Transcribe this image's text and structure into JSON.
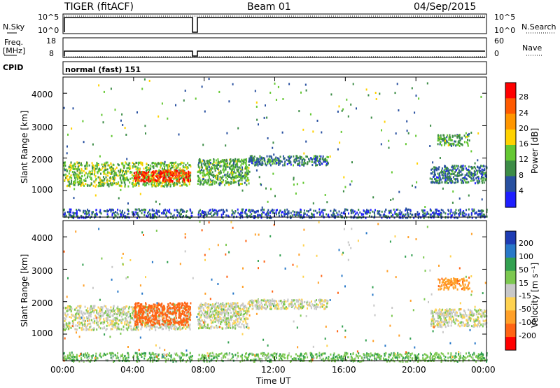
{
  "header": {
    "radar": "TIGER (fitACF)",
    "beam": "Beam 01",
    "date": "04/Sep/2015"
  },
  "noise_panel": {
    "left_label": "N.Sky",
    "right_label": "N.Search",
    "left_ticks": [
      "10^5",
      "10^0"
    ],
    "right_ticks": [
      "10^5",
      "10^0"
    ]
  },
  "freq_panel": {
    "left_label_top": "Freq.",
    "left_label_bottom": "[MHz]",
    "right_label": "Nave",
    "left_ticks": [
      "18",
      "8"
    ],
    "right_ticks": [
      "60",
      "0"
    ]
  },
  "cpid": {
    "label": "CPID",
    "value": "normal (fast) 151"
  },
  "axes": {
    "ylabel": "Slant Range [km]",
    "yticks": [
      "4000",
      "3000",
      "2000",
      "1000"
    ],
    "xticks": [
      "00:00",
      "04:00",
      "08:00",
      "12:00",
      "16:00",
      "20:00",
      "00:00"
    ],
    "xlabel": "Time UT"
  },
  "power_colorbar": {
    "label": "Power [dB]",
    "ticks": [
      "28",
      "24",
      "20",
      "16",
      "12",
      "8",
      "4"
    ],
    "colors": [
      "#ff0000",
      "#ff5a00",
      "#ff9600",
      "#ffd200",
      "#64c832",
      "#3c8c46",
      "#2850a0",
      "#1e1eff"
    ]
  },
  "velocity_colorbar": {
    "label": "Velocity [m s⁻¹]",
    "ticks": [
      "200",
      "100",
      "50",
      "15",
      "-15",
      "-50",
      "-100",
      "-200"
    ],
    "colors": [
      "#1e3cb4",
      "#2878c8",
      "#32a050",
      "#7cc850",
      "#c8c8c8",
      "#ffd250",
      "#ffa028",
      "#ff6414",
      "#ff0000"
    ]
  },
  "chart_data": {
    "type": "heatmap",
    "x_range_hours": [
      0,
      24
    ],
    "y_range_km": [
      180,
      4500
    ],
    "panels": [
      {
        "name": "Power",
        "scatter_bands": [
          {
            "t_start": 0.0,
            "t_end": 7.2,
            "r_start": 1150,
            "r_end": 1900,
            "value": 14
          },
          {
            "t_start": 4.0,
            "t_end": 7.2,
            "r_start": 1300,
            "r_end": 1650,
            "value": 28
          },
          {
            "t_start": 7.6,
            "t_end": 10.5,
            "r_start": 1200,
            "r_end": 2000,
            "value": 12
          },
          {
            "t_start": 10.5,
            "t_end": 15.0,
            "r_start": 1800,
            "r_end": 2100,
            "value": 8
          },
          {
            "t_start": 20.8,
            "t_end": 24.0,
            "r_start": 1250,
            "r_end": 1800,
            "value": 8
          },
          {
            "t_start": 21.2,
            "t_end": 23.0,
            "r_start": 2400,
            "r_end": 2750,
            "value": 12
          },
          {
            "t_start": 0.0,
            "t_end": 24.0,
            "r_start": 180,
            "r_end": 450,
            "value": 6
          }
        ]
      },
      {
        "name": "Velocity",
        "scatter_bands": [
          {
            "t_start": 0.0,
            "t_end": 7.2,
            "r_start": 1150,
            "r_end": 1900,
            "value": 0
          },
          {
            "t_start": 4.0,
            "t_end": 7.2,
            "r_start": 1300,
            "r_end": 2000,
            "value": -150
          },
          {
            "t_start": 7.6,
            "t_end": 10.5,
            "r_start": 1200,
            "r_end": 2000,
            "value": 0
          },
          {
            "t_start": 10.5,
            "t_end": 15.0,
            "r_start": 1800,
            "r_end": 2100,
            "value": 0
          },
          {
            "t_start": 20.8,
            "t_end": 24.0,
            "r_start": 1250,
            "r_end": 1800,
            "value": 0
          },
          {
            "t_start": 21.2,
            "t_end": 23.0,
            "r_start": 2400,
            "r_end": 2750,
            "value": -80
          },
          {
            "t_start": 0.0,
            "t_end": 24.0,
            "r_start": 180,
            "r_end": 450,
            "value": 40
          }
        ]
      }
    ],
    "data_gap_hours": [
      7.3,
      7.6
    ]
  }
}
